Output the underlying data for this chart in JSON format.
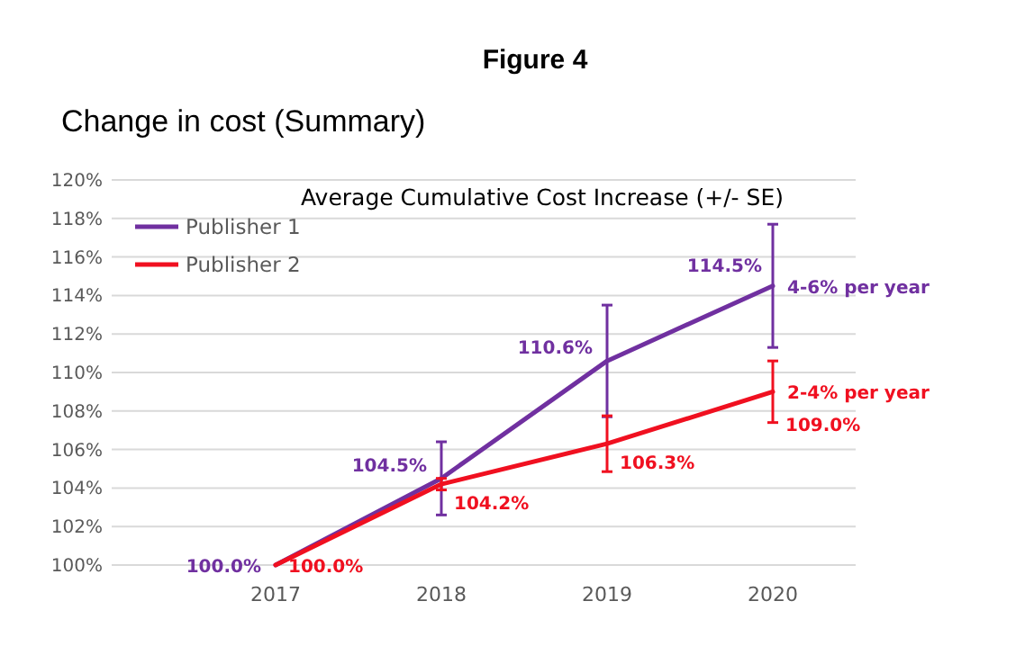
{
  "chart_data": {
    "type": "line",
    "title": "Figure 4",
    "subtitle": "Change in cost  (Summary)",
    "categories": [
      "2017",
      "2018",
      "2019",
      "2020"
    ],
    "series": [
      {
        "name": "Publisher 1",
        "color": "#7030a0",
        "values": [
          100.0,
          104.5,
          110.6,
          114.5
        ],
        "errors": [
          null,
          1.9,
          2.9,
          3.2
        ],
        "value_labels": [
          "100.0%",
          "104.5%",
          "110.6%",
          "114.5%"
        ]
      },
      {
        "name": "Publisher 2",
        "color": "#f01020",
        "values": [
          100.0,
          104.2,
          106.3,
          109.0
        ],
        "errors": [
          null,
          0.3,
          1.45,
          1.6
        ],
        "value_labels": [
          "100.0%",
          "104.2%",
          "106.3%",
          "109.0%"
        ]
      }
    ],
    "annotations": [
      "Average Cumulative Cost Increase (+/- SE)",
      {
        "text": "4-6% per year",
        "x": "2020",
        "y": 114.5
      },
      {
        "text": "2-4% per year",
        "x": "2020",
        "y": 109.0
      }
    ],
    "ylim": [
      100,
      120
    ],
    "yticks": [
      {
        "value": 100,
        "label": "100%"
      },
      {
        "value": 102,
        "label": "102%"
      },
      {
        "value": 104,
        "label": "104%"
      },
      {
        "value": 106,
        "label": "106%"
      },
      {
        "value": 108,
        "label": "108%"
      },
      {
        "value": 110,
        "label": "110%"
      },
      {
        "value": 112,
        "label": "112%"
      },
      {
        "value": 114,
        "label": "114%"
      },
      {
        "value": 116,
        "label": "116%"
      },
      {
        "value": 118,
        "label": "118%"
      },
      {
        "value": 120,
        "label": "120%"
      }
    ],
    "grid": "y",
    "legend": "top left",
    "marker": "none",
    "line_style": "solid"
  }
}
